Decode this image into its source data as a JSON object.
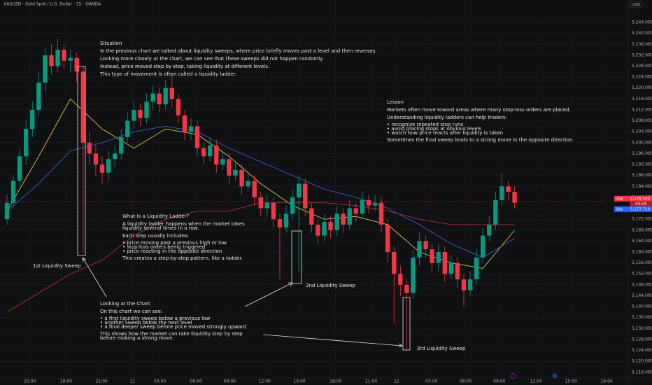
{
  "chart_data": {
    "type": "candlestick",
    "title": "XAUUSD · Gold Spot / U.S. Dollar · 15 · OANDA",
    "currency": "USD",
    "xlim": [
      -1.1,
      97.8
    ],
    "ylim": [
      5113.9,
      5252.2
    ],
    "grid": true,
    "xticks": [
      {
        "value": 3.6,
        "label": "15:00"
      },
      {
        "value": 9.3,
        "label": "18:00"
      },
      {
        "value": 14.9,
        "label": "21:00"
      },
      {
        "value": 19.8,
        "label": "11"
      },
      {
        "value": 24.1,
        "label": "03:00"
      },
      {
        "value": 29.8,
        "label": "06:00"
      },
      {
        "value": 35.1,
        "label": "09:00"
      },
      {
        "value": 40.6,
        "label": "12:00"
      },
      {
        "value": 46.1,
        "label": "15:00"
      },
      {
        "value": 51.8,
        "label": "18:00"
      },
      {
        "value": 57.4,
        "label": "21:00"
      },
      {
        "value": 61.4,
        "label": "12"
      },
      {
        "value": 66.9,
        "label": "03:00"
      },
      {
        "value": 72.3,
        "label": "06:00"
      },
      {
        "value": 77.6,
        "label": "09:00"
      },
      {
        "value": 83.4,
        "label": "12:00"
      },
      {
        "value": 88.9,
        "label": "15:00"
      },
      {
        "value": 94.5,
        "label": "18:00"
      }
    ],
    "yticks": [
      {
        "value": 5116,
        "label": "5,116.000"
      },
      {
        "value": 5120,
        "label": "5,120.000"
      },
      {
        "value": 5124,
        "label": "5,124.000"
      },
      {
        "value": 5128,
        "label": "5,128.000"
      },
      {
        "value": 5132,
        "label": "5,132.000"
      },
      {
        "value": 5136,
        "label": "5,136.000"
      },
      {
        "value": 5140,
        "label": "5,140.000"
      },
      {
        "value": 5144,
        "label": "5,144.000"
      },
      {
        "value": 5148,
        "label": "5,148.000"
      },
      {
        "value": 5152,
        "label": "5,152.000"
      },
      {
        "value": 5156,
        "label": "5,156.000"
      },
      {
        "value": 5160,
        "label": "5,160.000"
      },
      {
        "value": 5164,
        "label": "5,164.000"
      },
      {
        "value": 5168,
        "label": "5,168.000"
      },
      {
        "value": 5172,
        "label": "5,172.000"
      },
      {
        "value": 5176,
        "label": "5,176.000"
      },
      {
        "value": 5180,
        "label": "5,180.000"
      },
      {
        "value": 5184,
        "label": "5,184.000"
      },
      {
        "value": 5188,
        "label": "5,188.000"
      },
      {
        "value": 5192,
        "label": "5,192.000"
      },
      {
        "value": 5196,
        "label": "5,196.000"
      },
      {
        "value": 5200,
        "label": "5,200.000"
      },
      {
        "value": 5204,
        "label": "5,204.000"
      },
      {
        "value": 5208,
        "label": "5,208.000"
      },
      {
        "value": 5212,
        "label": "5,212.000"
      },
      {
        "value": 5216,
        "label": "5,216.000"
      },
      {
        "value": 5220,
        "label": "5,220.000"
      },
      {
        "value": 5224,
        "label": "5,224.000"
      },
      {
        "value": 5228,
        "label": "5,228.000"
      },
      {
        "value": 5232,
        "label": "5,232.000"
      },
      {
        "value": 5236,
        "label": "5,236.000"
      },
      {
        "value": 5240,
        "label": "5,240.000"
      },
      {
        "value": 5244,
        "label": "5,244.000"
      }
    ],
    "up_color": "#089981",
    "down_color": "#f23645",
    "open": [
      5172,
      5178,
      5186,
      5195,
      5205,
      5212,
      5222,
      5232,
      5228,
      5234,
      5230,
      5231,
      5226,
      5200,
      5196,
      5192,
      5189,
      5194,
      5196,
      5202,
      5208,
      5212,
      5209,
      5215,
      5218,
      5214,
      5220,
      5216,
      5210,
      5204,
      5206,
      5198,
      5195,
      5199,
      5192,
      5194,
      5188,
      5190,
      5184,
      5186,
      5180,
      5176,
      5178,
      5172,
      5169,
      5174,
      5180,
      5185,
      5176,
      5170,
      5166,
      5171,
      5168,
      5174,
      5170,
      5176,
      5174,
      5179,
      5177,
      5178,
      5170,
      5160,
      5152,
      5148,
      5145,
      5158,
      5164,
      5161,
      5156,
      5160,
      5152,
      5156,
      5150,
      5146,
      5150,
      5158,
      5166,
      5170,
      5179,
      5184,
      5182
    ],
    "high": [
      5181,
      5188,
      5198,
      5208,
      5215,
      5226,
      5235,
      5236,
      5238,
      5236,
      5234,
      5233,
      5228,
      5204,
      5199,
      5195,
      5197,
      5199,
      5205,
      5211,
      5215,
      5214,
      5218,
      5221,
      5220,
      5223,
      5225,
      5218,
      5212,
      5209,
      5208,
      5200,
      5202,
      5201,
      5197,
      5196,
      5193,
      5192,
      5189,
      5188,
      5182,
      5181,
      5180,
      5174,
      5177,
      5183,
      5188,
      5187,
      5178,
      5172,
      5174,
      5173,
      5177,
      5176,
      5179,
      5178,
      5182,
      5181,
      5181,
      5180,
      5172,
      5162,
      5155,
      5150,
      5161,
      5167,
      5166,
      5163,
      5163,
      5162,
      5159,
      5158,
      5152,
      5153,
      5161,
      5169,
      5173,
      5182,
      5189,
      5186,
      5184
    ],
    "low": [
      5170,
      5176,
      5184,
      5192,
      5202,
      5210,
      5219,
      5225,
      5226,
      5227,
      5226,
      5222,
      5160,
      5192,
      5188,
      5185,
      5186,
      5191,
      5194,
      5200,
      5205,
      5206,
      5207,
      5212,
      5211,
      5212,
      5213,
      5207,
      5201,
      5201,
      5195,
      5192,
      5193,
      5189,
      5190,
      5185,
      5186,
      5181,
      5182,
      5177,
      5173,
      5173,
      5169,
      5150,
      5167,
      5172,
      5153,
      5173,
      5167,
      5163,
      5164,
      5165,
      5166,
      5167,
      5168,
      5171,
      5172,
      5174,
      5175,
      5167,
      5156,
      5134,
      5144,
      5124,
      5143,
      5155,
      5158,
      5153,
      5153,
      5149,
      5150,
      5147,
      5140,
      5144,
      5148,
      5156,
      5164,
      5168,
      5177,
      5179,
      5176
    ],
    "close": [
      5178,
      5186,
      5195,
      5205,
      5212,
      5222,
      5232,
      5228,
      5234,
      5230,
      5231,
      5226,
      5200,
      5196,
      5192,
      5189,
      5194,
      5196,
      5202,
      5208,
      5212,
      5209,
      5215,
      5218,
      5214,
      5220,
      5216,
      5210,
      5204,
      5206,
      5198,
      5195,
      5199,
      5192,
      5194,
      5188,
      5190,
      5184,
      5186,
      5180,
      5176,
      5178,
      5172,
      5169,
      5174,
      5180,
      5185,
      5176,
      5170,
      5166,
      5171,
      5168,
      5174,
      5170,
      5176,
      5174,
      5179,
      5177,
      5178,
      5170,
      5160,
      5152,
      5148,
      5145,
      5158,
      5164,
      5161,
      5156,
      5160,
      5152,
      5156,
      5150,
      5146,
      5150,
      5158,
      5166,
      5170,
      5179,
      5184,
      5182,
      5178
    ],
    "lines": [
      {
        "color": "#e8c547",
        "x": [
          0,
          5,
          10,
          15,
          20,
          25,
          30,
          35,
          40,
          45,
          50,
          55,
          60,
          65,
          70,
          75,
          80
        ],
        "values": [
          5175,
          5195,
          5216,
          5205,
          5198,
          5205,
          5203,
          5195,
          5185,
          5177,
          5172,
          5173,
          5170,
          5160,
          5156,
          5154,
          5168
        ]
      },
      {
        "color": "#3d5fc4",
        "x": [
          0,
          5,
          10,
          15,
          20,
          25,
          30,
          35,
          40,
          45,
          50,
          55,
          60,
          65,
          70,
          75,
          80
        ],
        "values": [
          5175,
          5185,
          5197,
          5200,
          5204,
          5206,
          5204,
          5198,
          5193,
          5188,
          5183,
          5180,
          5176,
          5170,
          5163,
          5158,
          5165
        ]
      },
      {
        "color": "#b0303e",
        "x": [
          0,
          5,
          10,
          15,
          20,
          25,
          30,
          35,
          40,
          45,
          50,
          55,
          60,
          65,
          70,
          75,
          80
        ],
        "values": [
          5138,
          5145,
          5152,
          5157,
          5166,
          5172,
          5175,
          5175,
          5178,
          5178,
          5178,
          5177,
          5175,
          5172,
          5170,
          5170,
          5170
        ]
      }
    ],
    "price_labels": [
      {
        "name": "Ask",
        "value": 5178.5,
        "label": "5,178.500",
        "color": "#f23645"
      },
      {
        "name": "Bid",
        "value": 5177.71,
        "label": "5,177.710",
        "color": "#2962ff"
      }
    ],
    "countdown": "03:03",
    "annotations": {
      "situation": [
        "Situation",
        "In the previous chart we talked about liquidity sweeps, where price briefly moves past a level and then reverses.",
        "Looking more closely at the chart, we can see that these sweeps did not happen randomly.",
        "Instead, price moved step by step, taking liquidity at different levels.",
        "This type of movement is often called a liquidity ladder."
      ],
      "lesson": [
        "Lesson",
        "Markets often move toward areas where many stop-loss orders are placed.",
        "Understanding liquidity ladders can help traders:",
        "• recognize repeated stop runs",
        "• avoid placing stops at obvious levels",
        "• watch how price reacts after liquidity is taken",
        "Sometimes the final sweep leads to a strong move in the opposite direction."
      ],
      "ladder": [
        "What Is a Liquidity Ladder?",
        "A liquidity ladder happens when the market takes",
        "liquidity several times in a row.",
        "Each step usually includes:",
        "• price moving past a previous high or low",
        "• stop-loss orders being triggered",
        "• price reacting in the opposite direction",
        "This creates a step-by-step pattern, like a ladder."
      ],
      "looking": [
        "Looking at the Chart",
        "On this chart we can see:",
        "• a first liquidity sweep below a previous low",
        "• another sweep below the next level",
        "• a final deeper sweep before price moved strongly upward",
        "This shows how the market can take liquidity step by step",
        "before making a strong move."
      ],
      "sweeps": [
        "1st Liquidity Sweep",
        "2nd Liquidity Sweep",
        "3rd Liquidity Sweep"
      ]
    }
  }
}
